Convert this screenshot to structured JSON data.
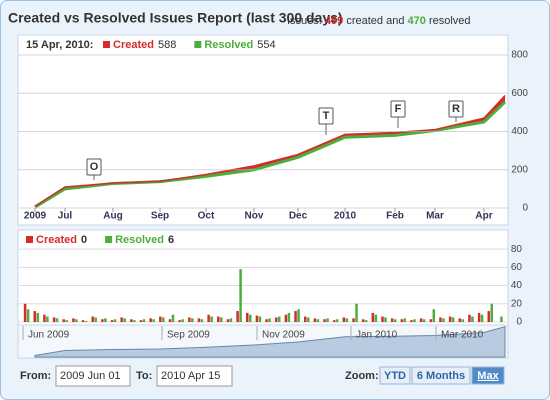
{
  "header": {
    "title": "Created vs Resolved Issues Report (last 300 days)",
    "summary": {
      "prefix": "Issues:",
      "created": 499,
      "middle": "created and",
      "resolved": 470,
      "suffix": "resolved"
    }
  },
  "chart_data": [
    {
      "type": "area",
      "hover_date": "15 Apr, 2010:",
      "categories": [
        "2009",
        "Jul",
        "Aug",
        "Sep",
        "Oct",
        "Nov",
        "Dec",
        "2010",
        "Feb",
        "Mar",
        "Apr",
        null
      ],
      "series": [
        {
          "name": "Created",
          "color": "#d62b2b",
          "values": [
            10,
            110,
            130,
            140,
            175,
            220,
            280,
            385,
            395,
            410,
            470,
            588
          ]
        },
        {
          "name": "Resolved",
          "color": "#4cae3c",
          "values": [
            5,
            100,
            128,
            138,
            165,
            200,
            265,
            370,
            380,
            405,
            450,
            554
          ]
        }
      ],
      "ylim": [
        0,
        800
      ],
      "yticks": [
        0,
        200,
        400,
        600,
        800
      ],
      "grid": true,
      "annotations": [
        "O",
        "T",
        "F",
        "R"
      ]
    },
    {
      "type": "bar",
      "categories": [
        null,
        null,
        null,
        null,
        null,
        null,
        null,
        null,
        null,
        null,
        null,
        null,
        null,
        null,
        null,
        null,
        null,
        null,
        null,
        null,
        null,
        null,
        null,
        null,
        null,
        null,
        null,
        null,
        null,
        null,
        null,
        null,
        null,
        null,
        null,
        null,
        null,
        null,
        null,
        null,
        null,
        null,
        null,
        null,
        null,
        null,
        null,
        null,
        null,
        null
      ],
      "series": [
        {
          "name": "Created",
          "color": "#d62b2b",
          "values": [
            20,
            12,
            8,
            5,
            3,
            4,
            2,
            6,
            3,
            2,
            5,
            3,
            2,
            4,
            6,
            3,
            2,
            5,
            4,
            8,
            6,
            3,
            12,
            10,
            7,
            3,
            5,
            8,
            12,
            6,
            4,
            3,
            2,
            5,
            4,
            3,
            10,
            6,
            4,
            3,
            2,
            4,
            3,
            5,
            6,
            4,
            8,
            10,
            12,
            0
          ]
        },
        {
          "name": "Resolved",
          "color": "#4cae3c",
          "values": [
            14,
            10,
            6,
            4,
            2,
            3,
            1,
            5,
            4,
            3,
            4,
            2,
            3,
            3,
            5,
            8,
            3,
            4,
            3,
            6,
            5,
            4,
            58,
            8,
            6,
            4,
            6,
            10,
            14,
            5,
            3,
            4,
            3,
            4,
            20,
            2,
            8,
            5,
            3,
            4,
            3,
            3,
            14,
            4,
            5,
            3,
            6,
            8,
            20,
            6
          ]
        }
      ],
      "ylim": [
        0,
        90
      ],
      "yticks": [
        0,
        20,
        40,
        60,
        80
      ],
      "grid": true
    },
    {
      "type": "navigator",
      "labels": [
        "Jun 2009",
        "Sep 2009",
        "Nov 2009",
        "Jan 2010",
        "Mar 2010"
      ]
    }
  ],
  "controls": {
    "from_label": "From:",
    "from": "2009 Jun 01",
    "to_label": "To:",
    "to": "2010 Apr 15",
    "zoom_label": "Zoom:",
    "zoom": [
      "YTD",
      "6 Months",
      "Max"
    ]
  }
}
